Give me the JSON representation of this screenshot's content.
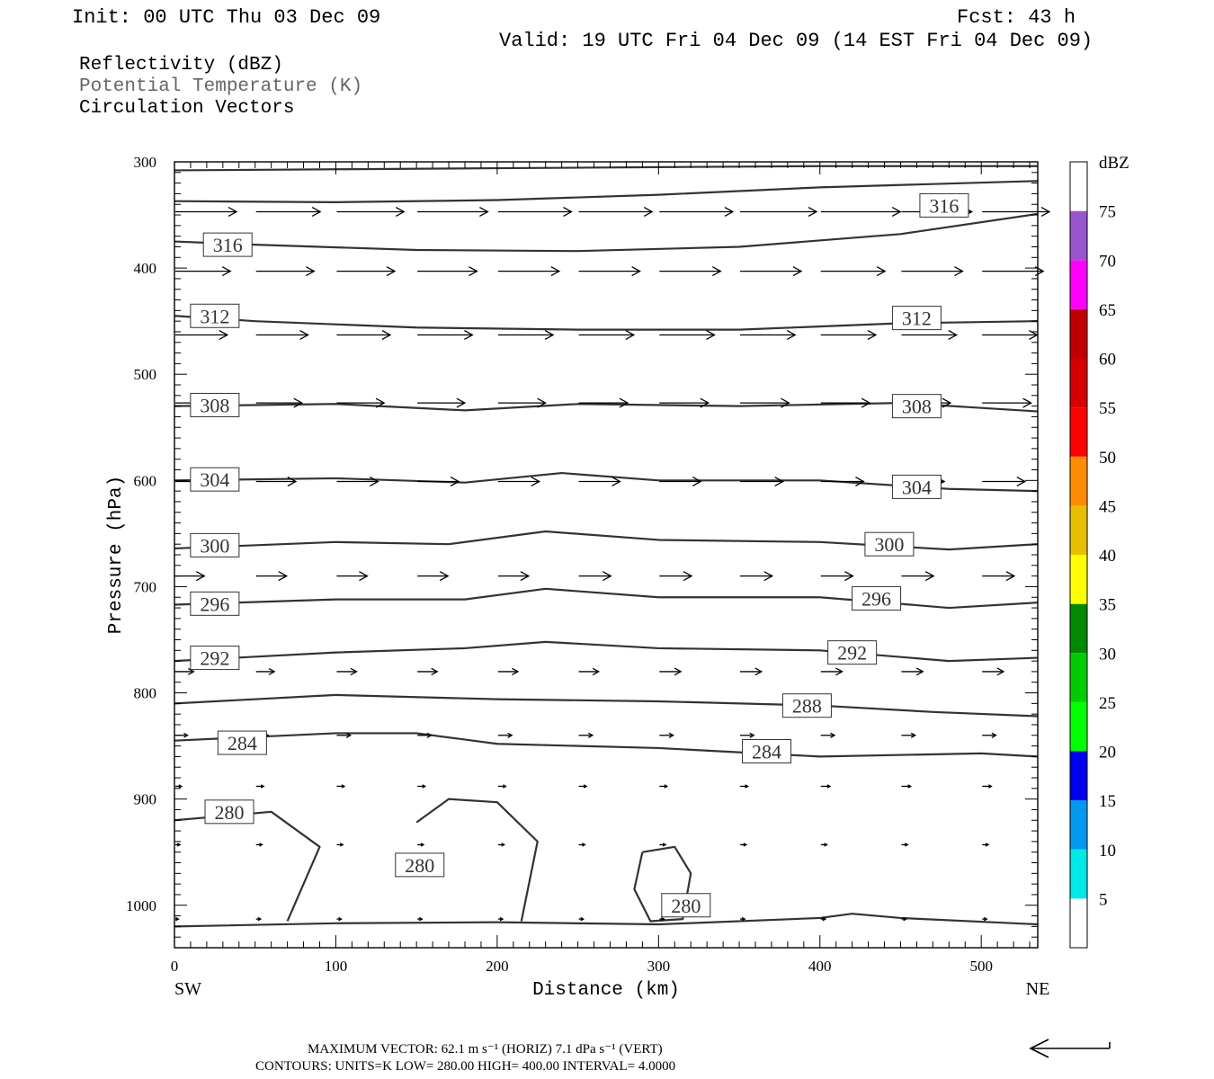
{
  "header": {
    "init": "Init: 00 UTC Thu 03 Dec 09",
    "fcst": "Fcst:   43 h",
    "valid": "Valid: 19 UTC Fri 04 Dec 09 (14 EST Fri 04 Dec 09)",
    "fields": [
      "Reflectivity (dBZ)",
      "Potential Temperature (K)",
      "Circulation Vectors"
    ]
  },
  "footer": {
    "max_vector": "MAXIMUM VECTOR:  62.1 m s⁻¹ (HORIZ)          7.1 dPa s⁻¹ (VERT)",
    "contours": "CONTOURS:  UNITS=K  LOW=  280.00       HIGH=  400.00       INTERVAL=    4.0000"
  },
  "colors": {
    "contour": "#333333",
    "axis": "#000000"
  },
  "chart_data": {
    "type": "line",
    "xlabel": "Distance (km)",
    "ylabel": "Pressure (hPa)",
    "xlim": [
      0,
      535
    ],
    "ylim": [
      1040,
      300
    ],
    "x_ticks": [
      0,
      100,
      200,
      300,
      400,
      500
    ],
    "y_ticks": [
      300,
      400,
      500,
      600,
      700,
      800,
      900,
      1000
    ],
    "x_endpoints": [
      "SW",
      "NE"
    ],
    "colorbar": {
      "unit": "dBZ",
      "levels": [
        5,
        10,
        15,
        20,
        25,
        30,
        35,
        40,
        45,
        50,
        55,
        60,
        65,
        70,
        75
      ],
      "colors": [
        "#ffffff",
        "#00e8e8",
        "#0099ee",
        "#0000ee",
        "#00ff00",
        "#00cc00",
        "#008800",
        "#ffff00",
        "#e6c000",
        "#ff8c00",
        "#ff0000",
        "#d60000",
        "#c00000",
        "#ff00ff",
        "#9955cc",
        "#ffffff"
      ]
    },
    "contours": [
      {
        "label": "316",
        "points": [
          [
            0,
            308
          ],
          [
            100,
            307
          ],
          [
            200,
            306
          ],
          [
            300,
            305
          ],
          [
            400,
            304
          ],
          [
            535,
            304
          ]
        ]
      },
      {
        "label": "316",
        "points": [
          [
            0,
            337
          ],
          [
            100,
            338
          ],
          [
            200,
            336
          ],
          [
            300,
            331
          ],
          [
            400,
            324
          ],
          [
            535,
            318
          ]
        ]
      },
      {
        "label": "316",
        "points": [
          [
            0,
            375
          ],
          [
            50,
            378
          ],
          [
            150,
            383
          ],
          [
            250,
            384
          ],
          [
            350,
            380
          ],
          [
            450,
            368
          ],
          [
            535,
            349
          ]
        ]
      },
      {
        "label": "312",
        "points": [
          [
            0,
            445
          ],
          [
            50,
            450
          ],
          [
            150,
            456
          ],
          [
            250,
            458
          ],
          [
            350,
            458
          ],
          [
            450,
            452
          ],
          [
            535,
            450
          ]
        ]
      },
      {
        "label": "308",
        "points": [
          [
            0,
            530
          ],
          [
            100,
            528
          ],
          [
            180,
            534
          ],
          [
            250,
            528
          ],
          [
            350,
            530
          ],
          [
            450,
            527
          ],
          [
            535,
            535
          ]
        ]
      },
      {
        "label": "304",
        "points": [
          [
            0,
            600
          ],
          [
            100,
            598
          ],
          [
            180,
            602
          ],
          [
            240,
            593
          ],
          [
            300,
            600
          ],
          [
            400,
            600
          ],
          [
            480,
            608
          ],
          [
            535,
            610
          ]
        ]
      },
      {
        "label": "300",
        "points": [
          [
            0,
            664
          ],
          [
            100,
            658
          ],
          [
            170,
            660
          ],
          [
            230,
            648
          ],
          [
            300,
            656
          ],
          [
            400,
            658
          ],
          [
            480,
            665
          ],
          [
            535,
            660
          ]
        ]
      },
      {
        "label": "296",
        "points": [
          [
            0,
            717
          ],
          [
            100,
            712
          ],
          [
            180,
            712
          ],
          [
            230,
            702
          ],
          [
            300,
            710
          ],
          [
            400,
            710
          ],
          [
            480,
            720
          ],
          [
            535,
            715
          ]
        ]
      },
      {
        "label": "292",
        "points": [
          [
            0,
            770
          ],
          [
            100,
            762
          ],
          [
            180,
            758
          ],
          [
            230,
            752
          ],
          [
            300,
            758
          ],
          [
            400,
            760
          ],
          [
            480,
            770
          ],
          [
            535,
            767
          ]
        ]
      },
      {
        "label": "288",
        "points": [
          [
            0,
            810
          ],
          [
            100,
            802
          ],
          [
            200,
            806
          ],
          [
            300,
            808
          ],
          [
            400,
            812
          ],
          [
            470,
            818
          ],
          [
            535,
            822
          ]
        ]
      },
      {
        "label": "284",
        "points": [
          [
            0,
            845
          ],
          [
            100,
            838
          ],
          [
            150,
            838
          ],
          [
            200,
            848
          ],
          [
            300,
            852
          ],
          [
            400,
            860
          ],
          [
            500,
            857
          ],
          [
            535,
            860
          ]
        ]
      },
      {
        "label": "280",
        "points": [
          [
            0,
            920
          ],
          [
            60,
            912
          ],
          [
            90,
            945
          ],
          [
            70,
            1015
          ]
        ]
      },
      {
        "label": "280",
        "points": [
          [
            150,
            922
          ],
          [
            170,
            900
          ],
          [
            200,
            903
          ],
          [
            225,
            940
          ],
          [
            215,
            1015
          ]
        ]
      },
      {
        "label": "280",
        "points": [
          [
            290,
            950
          ],
          [
            310,
            945
          ],
          [
            320,
            970
          ],
          [
            315,
            1013
          ],
          [
            295,
            1015
          ],
          [
            285,
            985
          ],
          [
            290,
            950
          ]
        ]
      },
      {
        "label": "",
        "points": [
          [
            0,
            1020
          ],
          [
            100,
            1017
          ],
          [
            200,
            1016
          ],
          [
            300,
            1018
          ],
          [
            400,
            1012
          ],
          [
            420,
            1008
          ],
          [
            450,
            1012
          ],
          [
            535,
            1018
          ]
        ]
      }
    ],
    "contour_labels": [
      {
        "text": "316",
        "x": 33,
        "y": 378
      },
      {
        "text": "316",
        "x": 477,
        "y": 341
      },
      {
        "text": "312",
        "x": 25,
        "y": 445
      },
      {
        "text": "312",
        "x": 460,
        "y": 447
      },
      {
        "text": "308",
        "x": 25,
        "y": 529
      },
      {
        "text": "308",
        "x": 460,
        "y": 530
      },
      {
        "text": "304",
        "x": 25,
        "y": 599
      },
      {
        "text": "304",
        "x": 460,
        "y": 606
      },
      {
        "text": "300",
        "x": 25,
        "y": 661
      },
      {
        "text": "300",
        "x": 443,
        "y": 660
      },
      {
        "text": "296",
        "x": 25,
        "y": 716
      },
      {
        "text": "296",
        "x": 435,
        "y": 711
      },
      {
        "text": "292",
        "x": 25,
        "y": 767
      },
      {
        "text": "292",
        "x": 420,
        "y": 762
      },
      {
        "text": "288",
        "x": 392,
        "y": 812
      },
      {
        "text": "284",
        "x": 42,
        "y": 847
      },
      {
        "text": "284",
        "x": 367,
        "y": 855
      },
      {
        "text": "280",
        "x": 34,
        "y": 912
      },
      {
        "text": "280",
        "x": 152,
        "y": 962
      },
      {
        "text": "280",
        "x": 317,
        "y": 1000
      }
    ],
    "vector_rows": [
      {
        "p": 347,
        "u": [
          40,
          42,
          44,
          46,
          48,
          48,
          48,
          50,
          52,
          46,
          44
        ]
      },
      {
        "p": 403,
        "u": [
          36,
          38,
          38,
          39,
          40,
          40,
          40,
          40,
          42,
          40,
          40
        ]
      },
      {
        "p": 463,
        "u": [
          34,
          34,
          35,
          36,
          36,
          36,
          36,
          36,
          36,
          36,
          36
        ]
      },
      {
        "p": 527,
        "u": [
          30,
          30,
          31,
          31,
          31,
          32,
          32,
          32,
          32,
          32,
          32
        ]
      },
      {
        "p": 601,
        "u": [
          26,
          26,
          27,
          27,
          27,
          27,
          27,
          28,
          28,
          28,
          28
        ]
      },
      {
        "p": 690,
        "u": [
          19,
          20,
          20,
          20,
          20,
          21,
          21,
          21,
          21,
          21,
          21
        ]
      },
      {
        "p": 780,
        "u": [
          12,
          12,
          13,
          13,
          13,
          13,
          14,
          14,
          14,
          14,
          14
        ]
      },
      {
        "p": 840,
        "u": [
          8,
          8,
          9,
          9,
          9,
          9,
          9,
          9,
          9,
          9,
          9
        ]
      },
      {
        "p": 888,
        "u": [
          4,
          5,
          5,
          5,
          5,
          5,
          5,
          5,
          6,
          6,
          6
        ]
      },
      {
        "p": 943,
        "u": [
          3,
          4,
          4,
          4,
          4,
          4,
          4,
          4,
          4,
          4,
          4
        ]
      },
      {
        "p": 1013,
        "u": [
          2,
          3,
          3,
          3,
          3,
          3,
          3,
          3,
          3,
          3,
          3
        ]
      }
    ],
    "vector_x": [
      0,
      50,
      100,
      150,
      200,
      250,
      300,
      350,
      400,
      450,
      500
    ]
  }
}
